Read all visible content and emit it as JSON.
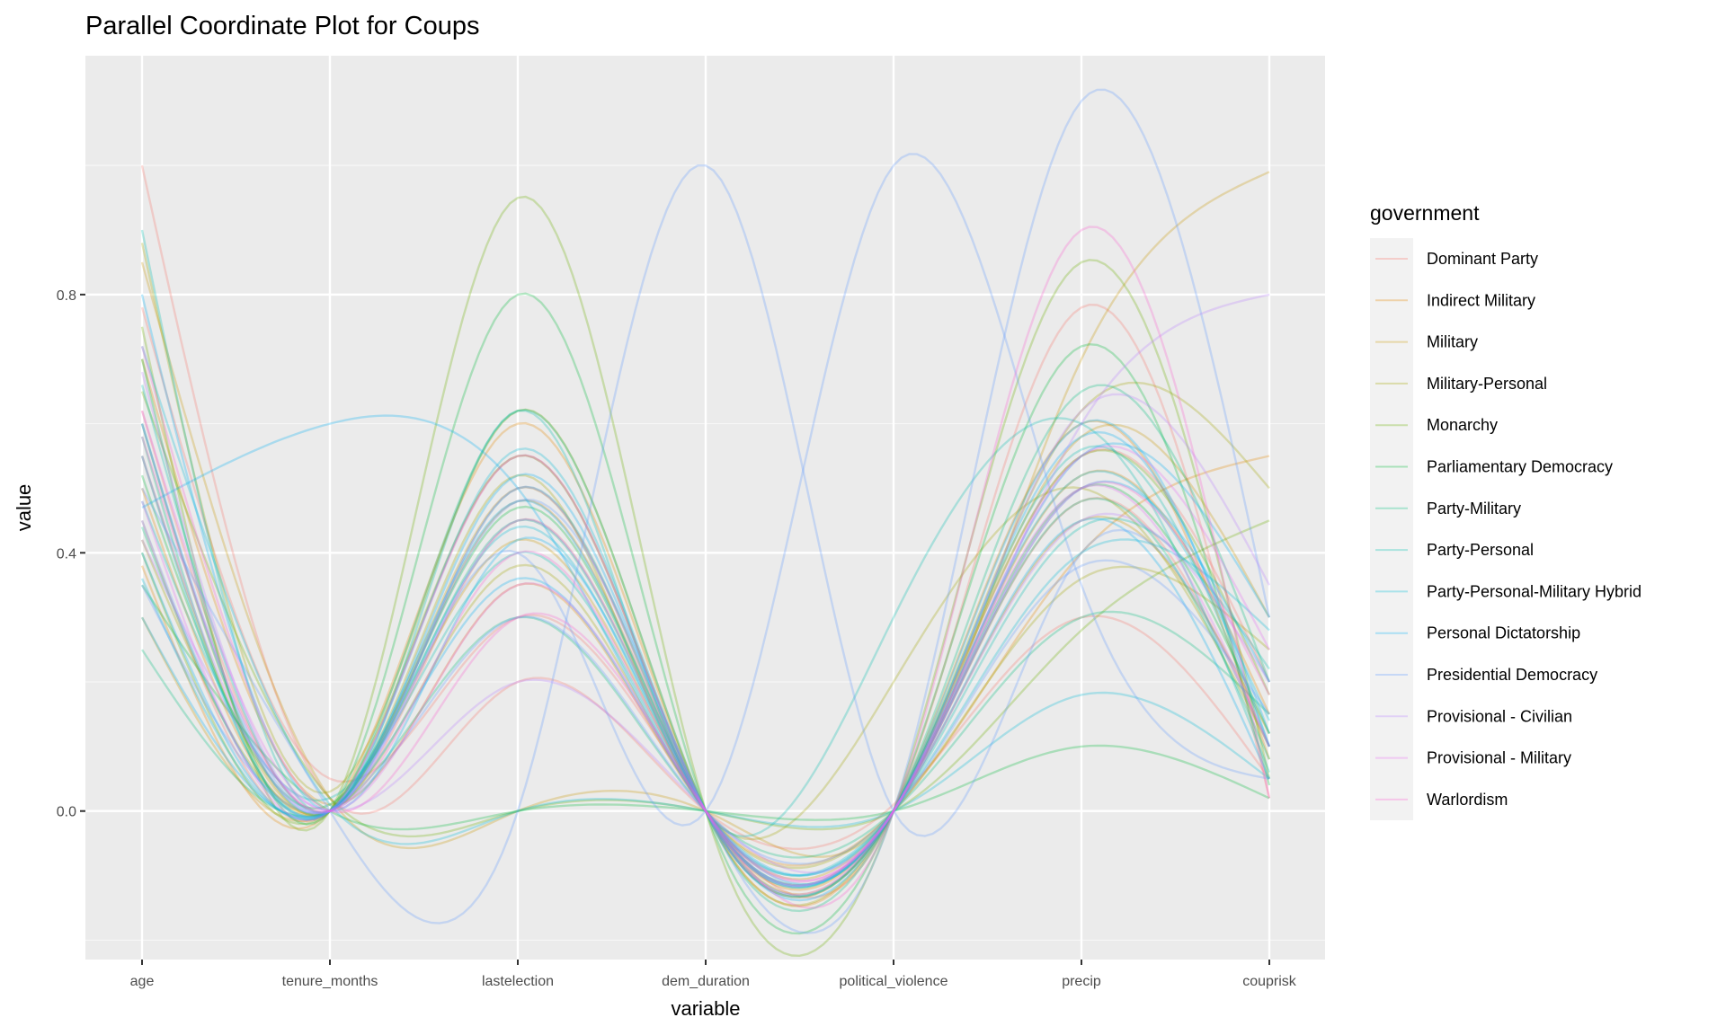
{
  "chart_data": {
    "type": "line",
    "subtype": "parallel-coordinates",
    "title": "Parallel Coordinate Plot for Coups",
    "xlabel": "variable",
    "ylabel": "value",
    "categories": [
      "age",
      "tenure_months",
      "lastelection",
      "dem_duration",
      "political_violence",
      "precip",
      "couprisk"
    ],
    "y_ticks": [
      "0.0",
      "0.4",
      "0.8"
    ],
    "y_tick_values": [
      0.0,
      0.4,
      0.8
    ],
    "ylim": [
      -0.23,
      1.17
    ],
    "grid": true,
    "legend": {
      "title": "government",
      "position": "right",
      "entries": [
        "Dominant Party",
        "Indirect Military",
        "Military",
        "Military-Personal",
        "Monarchy",
        "Parliamentary Democracy",
        "Party-Military",
        "Party-Personal",
        "Party-Personal-Military Hybrid",
        "Personal Dictatorship",
        "Presidential Democracy",
        "Provisional - Civilian",
        "Provisional - Military",
        "Warlordism"
      ],
      "colors": [
        "#F8766D",
        "#E58700",
        "#C99800",
        "#A3A500",
        "#6BB100",
        "#00BA38",
        "#00BF7D",
        "#00C0AF",
        "#00BCD8",
        "#00B0F6",
        "#619CFF",
        "#B983FF",
        "#E76BF3",
        "#FD61D1"
      ]
    },
    "line_alpha": 0.2,
    "series": [
      {
        "government": "Dominant Party",
        "values": [
          0.62,
          0.0,
          0.45,
          0.0,
          0.0,
          0.48,
          0.1
        ]
      },
      {
        "government": "Dominant Party",
        "values": [
          1.0,
          0.02,
          0.2,
          0.0,
          0.01,
          0.3,
          0.05
        ]
      },
      {
        "government": "Dominant Party",
        "values": [
          0.45,
          0.0,
          0.55,
          0.0,
          0.0,
          0.55,
          0.2
        ]
      },
      {
        "government": "Dominant Party",
        "values": [
          0.78,
          0.05,
          0.3,
          0.0,
          0.0,
          0.78,
          0.02
        ]
      },
      {
        "government": "Indirect Military",
        "values": [
          0.5,
          0.0,
          0.48,
          0.0,
          0.0,
          0.52,
          0.15
        ]
      },
      {
        "government": "Indirect Military",
        "values": [
          0.7,
          0.01,
          0.35,
          0.0,
          0.0,
          0.4,
          0.55
        ]
      },
      {
        "government": "Indirect Military",
        "values": [
          0.38,
          0.0,
          0.6,
          0.0,
          0.0,
          0.6,
          0.08
        ]
      },
      {
        "government": "Military",
        "values": [
          0.85,
          0.02,
          0.0,
          0.0,
          0.0,
          0.7,
          0.99
        ]
      },
      {
        "government": "Military",
        "values": [
          0.55,
          0.0,
          0.5,
          0.0,
          0.0,
          0.58,
          0.3
        ]
      },
      {
        "government": "Military",
        "values": [
          0.3,
          0.0,
          0.42,
          0.0,
          0.0,
          0.45,
          0.12
        ]
      },
      {
        "government": "Military-Personal",
        "values": [
          0.6,
          0.0,
          0.52,
          0.0,
          0.2,
          0.5,
          0.1
        ]
      },
      {
        "government": "Military-Personal",
        "values": [
          0.42,
          0.0,
          0.38,
          0.0,
          0.0,
          0.36,
          0.25
        ]
      },
      {
        "government": "Military-Personal",
        "values": [
          0.88,
          0.03,
          0.62,
          0.0,
          0.0,
          0.62,
          0.5
        ]
      },
      {
        "government": "Monarchy",
        "values": [
          0.75,
          0.0,
          0.95,
          0.0,
          0.0,
          0.85,
          0.05
        ]
      },
      {
        "government": "Monarchy",
        "values": [
          0.4,
          0.0,
          0.55,
          0.0,
          0.0,
          0.55,
          0.18
        ]
      },
      {
        "government": "Monarchy",
        "values": [
          0.65,
          0.02,
          0.0,
          0.0,
          0.0,
          0.28,
          0.45
        ]
      },
      {
        "government": "Parliamentary Democracy",
        "values": [
          0.7,
          0.0,
          0.8,
          0.0,
          0.0,
          0.72,
          0.04
        ]
      },
      {
        "government": "Parliamentary Democracy",
        "values": [
          0.52,
          0.01,
          0.47,
          0.0,
          0.0,
          0.5,
          0.12
        ]
      },
      {
        "government": "Parliamentary Democracy",
        "values": [
          0.35,
          0.0,
          0.0,
          0.0,
          0.0,
          0.1,
          0.02
        ]
      },
      {
        "government": "Party-Military",
        "values": [
          0.58,
          0.0,
          0.62,
          0.0,
          0.0,
          0.65,
          0.2
        ]
      },
      {
        "government": "Party-Military",
        "values": [
          0.44,
          0.0,
          0.45,
          0.0,
          0.0,
          0.48,
          0.08
        ]
      },
      {
        "government": "Party-Military",
        "values": [
          0.25,
          0.0,
          0.3,
          0.0,
          0.0,
          0.3,
          0.15
        ]
      },
      {
        "government": "Party-Personal",
        "values": [
          0.66,
          0.0,
          0.5,
          0.0,
          0.0,
          0.56,
          0.1
        ]
      },
      {
        "government": "Party-Personal",
        "values": [
          0.48,
          0.02,
          0.4,
          0.0,
          0.0,
          0.44,
          0.22
        ]
      },
      {
        "government": "Party-Personal",
        "values": [
          0.9,
          0.0,
          0.62,
          0.0,
          0.3,
          0.6,
          0.06
        ]
      },
      {
        "government": "Party-Personal-Military Hybrid",
        "values": [
          0.55,
          0.0,
          0.56,
          0.0,
          0.0,
          0.52,
          0.14
        ]
      },
      {
        "government": "Party-Personal-Military Hybrid",
        "values": [
          0.36,
          0.0,
          0.44,
          0.0,
          0.0,
          0.4,
          0.28
        ]
      },
      {
        "government": "Party-Personal-Military Hybrid",
        "values": [
          0.72,
          0.01,
          0.0,
          0.0,
          0.0,
          0.18,
          0.05
        ]
      },
      {
        "government": "Personal Dictatorship",
        "values": [
          0.47,
          0.6,
          0.5,
          0.0,
          0.0,
          0.58,
          0.12
        ]
      },
      {
        "government": "Personal Dictatorship",
        "values": [
          0.6,
          0.0,
          0.52,
          0.0,
          0.0,
          0.6,
          0.1
        ]
      },
      {
        "government": "Personal Dictatorship",
        "values": [
          0.4,
          0.0,
          0.48,
          0.0,
          0.0,
          0.5,
          0.2
        ]
      },
      {
        "government": "Personal Dictatorship",
        "values": [
          0.8,
          0.0,
          0.42,
          0.0,
          0.0,
          0.55,
          0.3
        ]
      },
      {
        "government": "Personal Dictatorship",
        "values": [
          0.3,
          0.0,
          0.36,
          0.0,
          0.0,
          0.45,
          0.05
        ]
      },
      {
        "government": "Presidential Democracy",
        "values": [
          0.5,
          0.0,
          0.0,
          1.0,
          0.0,
          0.4,
          0.1
        ]
      },
      {
        "government": "Presidential Democracy",
        "values": [
          0.6,
          0.0,
          0.4,
          0.0,
          1.0,
          0.35,
          0.05
        ]
      },
      {
        "government": "Presidential Democracy",
        "values": [
          0.45,
          0.0,
          0.48,
          0.0,
          0.0,
          1.1,
          0.3
        ]
      },
      {
        "government": "Presidential Democracy",
        "values": [
          0.35,
          0.0,
          0.3,
          0.0,
          0.0,
          0.38,
          0.15
        ]
      },
      {
        "government": "Provisional - Civilian",
        "values": [
          0.55,
          0.0,
          0.45,
          0.0,
          0.0,
          0.6,
          0.8
        ]
      },
      {
        "government": "Provisional - Civilian",
        "values": [
          0.42,
          0.0,
          0.2,
          0.0,
          0.0,
          0.62,
          0.35
        ]
      },
      {
        "government": "Provisional - Civilian",
        "values": [
          0.68,
          0.0,
          0.5,
          0.0,
          0.0,
          0.45,
          0.2
        ]
      },
      {
        "government": "Provisional - Military",
        "values": [
          0.62,
          0.0,
          0.35,
          0.0,
          0.0,
          0.55,
          0.25
        ]
      },
      {
        "government": "Provisional - Military",
        "values": [
          0.48,
          0.0,
          0.55,
          0.0,
          0.0,
          0.5,
          0.1
        ]
      },
      {
        "government": "Warlordism",
        "values": [
          0.58,
          0.0,
          0.4,
          0.0,
          0.0,
          0.5,
          0.18
        ]
      },
      {
        "government": "Warlordism",
        "values": [
          0.72,
          0.0,
          0.3,
          0.0,
          0.0,
          0.9,
          0.02
        ]
      }
    ]
  }
}
